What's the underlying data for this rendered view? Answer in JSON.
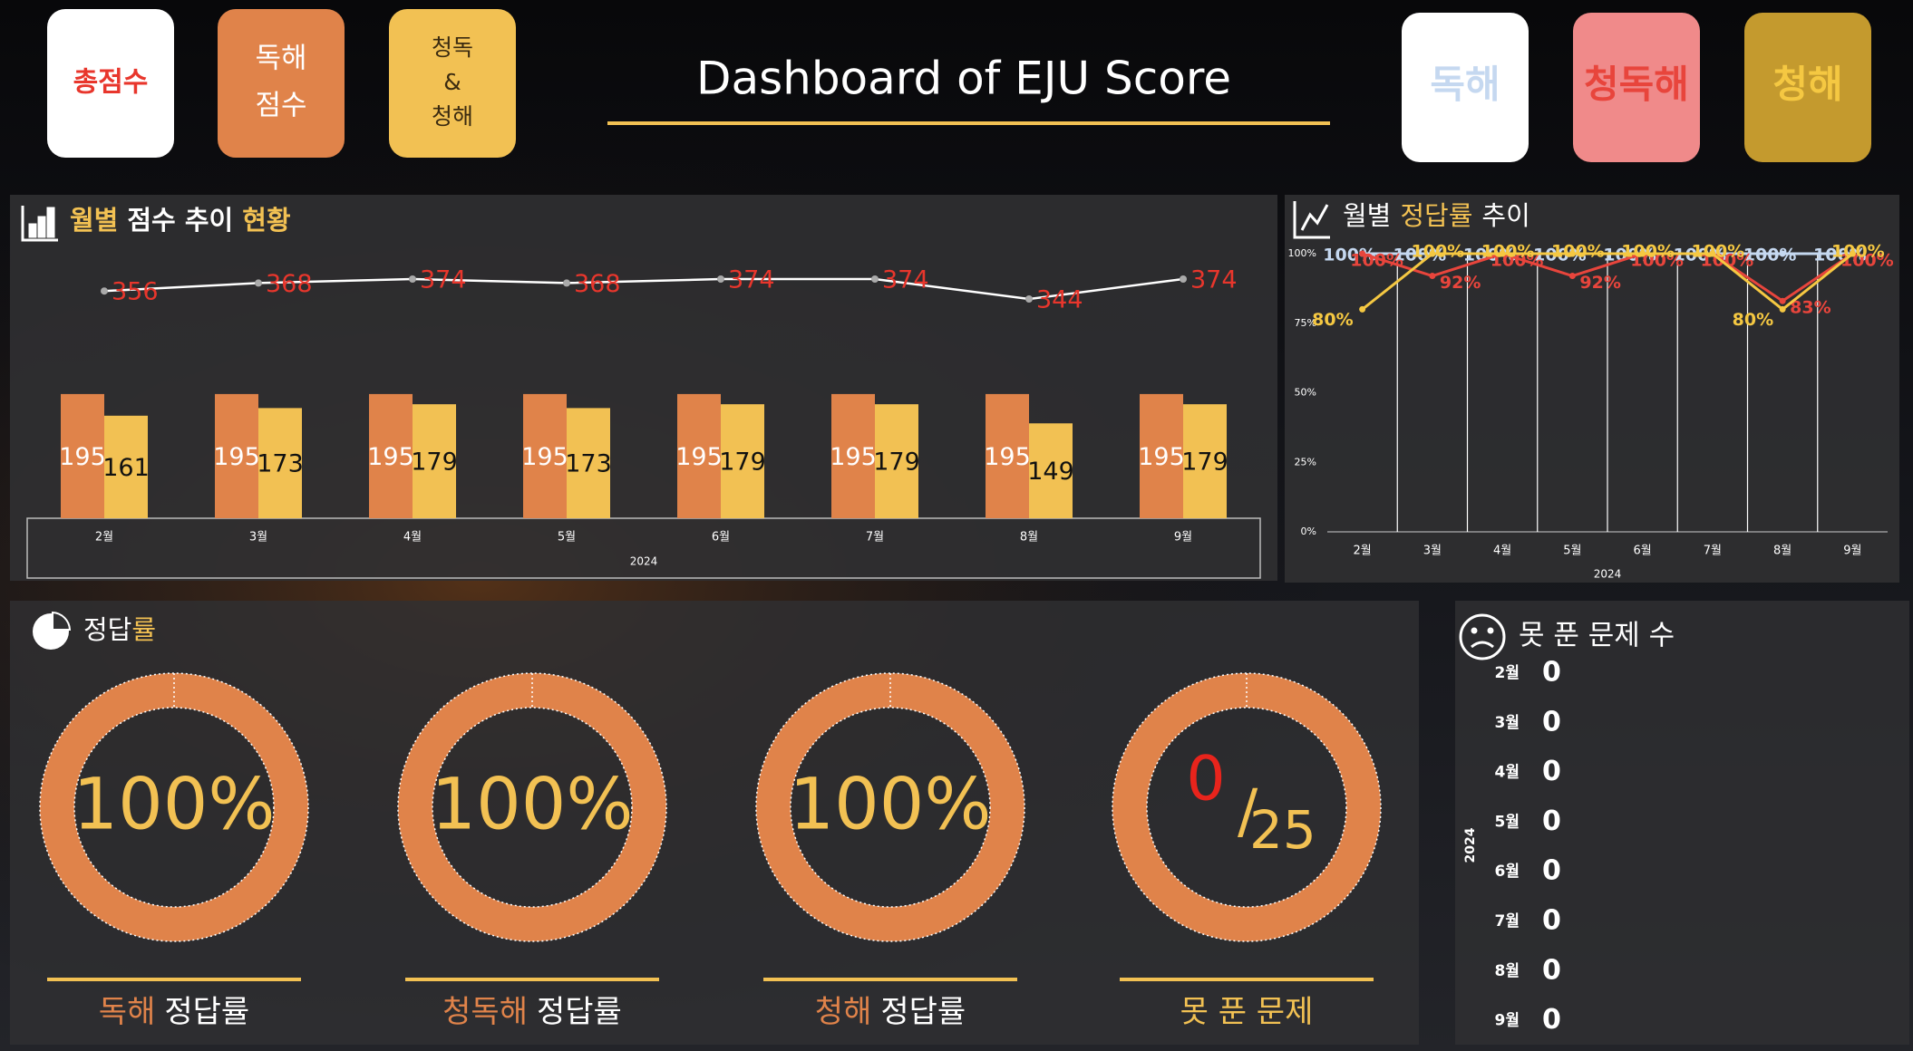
{
  "header": {
    "title": "Dashboard of EJU Score",
    "buttons": [
      [
        "총점수"
      ],
      [
        "독해",
        "점수"
      ],
      [
        "청독",
        "&",
        "청해"
      ]
    ]
  },
  "chart_data": [
    {
      "type": "bar_line",
      "title": [
        "월별",
        "점수 추이",
        "현황"
      ],
      "categories": [
        "2월",
        "3월",
        "4월",
        "5월",
        "6월",
        "7월",
        "8월",
        "9월"
      ],
      "x_group": "2024",
      "series": [
        {
          "kind": "line",
          "color": "#ffffff",
          "label_color": "#e8362c",
          "values": [
            356,
            368,
            374,
            368,
            374,
            374,
            344,
            374
          ]
        },
        {
          "kind": "bar",
          "color": "#e0834a",
          "label_color": "#ffffff",
          "values": [
            195,
            195,
            195,
            195,
            195,
            195,
            195,
            195
          ]
        },
        {
          "kind": "bar",
          "color": "#f2c153",
          "label_color": "#111111",
          "values": [
            161,
            173,
            179,
            173,
            179,
            179,
            149,
            179
          ]
        }
      ]
    },
    {
      "type": "line",
      "title": [
        "월별",
        "정답률",
        "추이"
      ],
      "categories": [
        "2월",
        "3월",
        "4월",
        "5월",
        "6월",
        "7월",
        "8월",
        "9월"
      ],
      "x_group": "2024",
      "ylim": [
        0,
        100
      ],
      "yticks": [
        {
          "value": 0,
          "label": "0%"
        },
        {
          "value": 25,
          "label": "25%"
        },
        {
          "value": 50,
          "label": "50%"
        },
        {
          "value": 75,
          "label": "75%"
        },
        {
          "value": 100,
          "label": "100%"
        }
      ],
      "grid": true,
      "series": [
        {
          "name": "독해",
          "color": "#c5d8f0",
          "values": [
            100,
            100,
            100,
            100,
            100,
            100,
            100,
            100
          ],
          "value_labels": [
            "100%",
            "100%",
            "100%",
            "100%",
            "100%",
            "100%",
            "100%",
            "100%"
          ]
        },
        {
          "name": "청독해",
          "color": "#e8453c",
          "values": [
            100,
            92,
            100,
            92,
            100,
            100,
            83,
            100
          ],
          "value_labels": [
            "100%",
            "92%",
            "100%",
            "92%",
            "100%",
            "100%",
            "83%",
            "100%"
          ]
        },
        {
          "name": "청해",
          "color": "#f5c842",
          "values": [
            80,
            100,
            100,
            100,
            100,
            100,
            80,
            100
          ],
          "value_labels": [
            "80%",
            "100%",
            "100%",
            "100%",
            "100%",
            "100%",
            "80%",
            "100%"
          ]
        }
      ]
    },
    {
      "type": "donut",
      "title": [
        "정답",
        "률"
      ],
      "categories": [
        "독해",
        "청독해",
        "청해"
      ],
      "caption": "정답률",
      "values": [
        100,
        100,
        100
      ],
      "value_labels": [
        "100%",
        "100%",
        "100%"
      ],
      "color": "#e0834a"
    },
    {
      "type": "fraction",
      "caption": "못 푼 문제",
      "value": 0,
      "separator": "/",
      "total": 25,
      "color": "#e0834a"
    },
    {
      "type": "table",
      "title": "못 푼 문제 수",
      "categories": [
        "2월",
        "3월",
        "4월",
        "5월",
        "6월",
        "7월",
        "8월",
        "9월"
      ],
      "x_group": "2024",
      "values": [
        0,
        0,
        0,
        0,
        0,
        0,
        0,
        0
      ]
    }
  ]
}
